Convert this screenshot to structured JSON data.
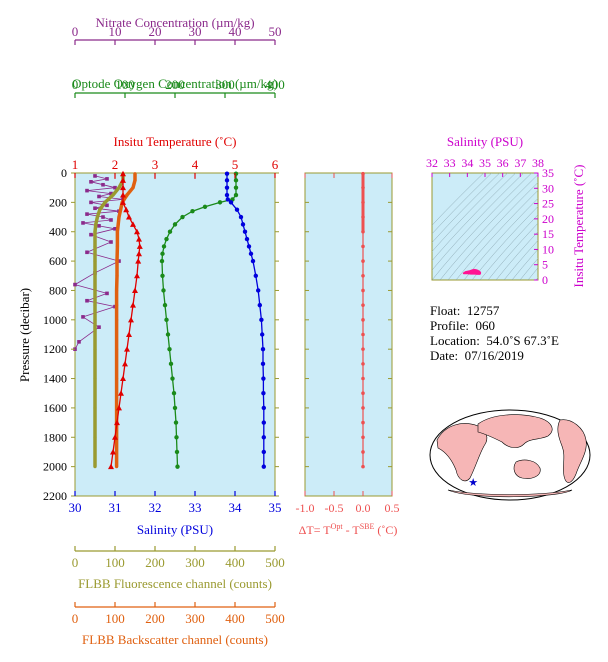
{
  "colors": {
    "nitrate": "#8b2a8b",
    "oxygen": "#1a8a1a",
    "temperature": "#e00000",
    "salinity": "#0000dd",
    "fluorescence": "#9a9a30",
    "backscatter": "#e06010",
    "delta_t": "#ee5050",
    "ts_axis": "#cc00cc",
    "plot_bg": "#ccecf8",
    "frame": "#9a9a30"
  },
  "info": {
    "float_label": "Float:",
    "float_value": "12757",
    "profile_label": "Profile:",
    "profile_value": "060",
    "location_label": "Location:",
    "location_value": "54.0˚S  67.3˚E",
    "date_label": "Date:",
    "date_value": "07/16/2019"
  },
  "chart_data": [
    {
      "type": "line",
      "id": "main-profile",
      "ylabel": "Pressure (decibar)",
      "ylim": [
        0,
        2200
      ],
      "y_ticks": [
        "0",
        "200",
        "400",
        "600",
        "800",
        "1000",
        "1200",
        "1400",
        "1600",
        "1800",
        "2000",
        "2200"
      ],
      "inverted_y": true,
      "axes": {
        "nitrate": {
          "label": "Nitrate Concentration (µm/kg)",
          "range": [
            0,
            50
          ],
          "ticks": [
            "0",
            "10",
            "20",
            "30",
            "40",
            "50"
          ]
        },
        "oxygen": {
          "label": "Optode Oxygen Concentration (µm/kg)",
          "range": [
            0,
            400
          ],
          "ticks": [
            "0",
            "100",
            "200",
            "300",
            "400"
          ]
        },
        "temperature": {
          "label": "Insitu Temperature (˚C)",
          "range": [
            1,
            6
          ],
          "ticks": [
            "1",
            "2",
            "3",
            "4",
            "5",
            "6"
          ]
        },
        "salinity": {
          "label": "Salinity (PSU)",
          "range": [
            30,
            35
          ],
          "ticks": [
            "30",
            "31",
            "32",
            "33",
            "34",
            "35"
          ]
        },
        "fluorescence": {
          "label": "FLBB Fluorescence channel (counts)",
          "range": [
            0,
            500
          ],
          "ticks": [
            "0",
            "100",
            "200",
            "300",
            "400",
            "500"
          ]
        },
        "backscatter": {
          "label": "FLBB Backscatter channel (counts)",
          "range": [
            0,
            500
          ],
          "ticks": [
            "0",
            "100",
            "200",
            "300",
            "400",
            "500"
          ]
        }
      },
      "series": [
        {
          "key": "temperature",
          "axis": "temperature",
          "pressure": [
            5,
            50,
            100,
            150,
            200,
            250,
            300,
            350,
            400,
            450,
            500,
            550,
            600,
            700,
            800,
            900,
            1000,
            1100,
            1200,
            1300,
            1400,
            1500,
            1600,
            1700,
            1800,
            1900,
            2000
          ],
          "values": [
            2.2,
            2.2,
            2.2,
            2.2,
            2.2,
            2.28,
            2.35,
            2.45,
            2.55,
            2.6,
            2.62,
            2.6,
            2.58,
            2.55,
            2.5,
            2.45,
            2.4,
            2.35,
            2.3,
            2.25,
            2.2,
            2.15,
            2.1,
            2.05,
            2.0,
            1.95,
            1.9
          ]
        },
        {
          "key": "salinity",
          "axis": "salinity",
          "pressure": [
            5,
            50,
            100,
            150,
            180,
            200,
            250,
            300,
            350,
            400,
            450,
            500,
            550,
            600,
            700,
            800,
            900,
            1000,
            1100,
            1200,
            1300,
            1400,
            1500,
            1600,
            1700,
            1800,
            1900,
            2000
          ],
          "values": [
            33.8,
            33.8,
            33.8,
            33.8,
            33.82,
            33.9,
            34.05,
            34.15,
            34.2,
            34.25,
            34.3,
            34.35,
            34.4,
            34.45,
            34.52,
            34.58,
            34.62,
            34.66,
            34.68,
            34.7,
            34.7,
            34.71,
            34.71,
            34.72,
            34.72,
            34.72,
            34.72,
            34.72
          ]
        },
        {
          "key": "oxygen",
          "axis": "oxygen",
          "pressure": [
            5,
            50,
            100,
            150,
            180,
            200,
            230,
            260,
            300,
            350,
            400,
            450,
            500,
            550,
            600,
            700,
            800,
            900,
            1000,
            1100,
            1200,
            1300,
            1400,
            1500,
            1600,
            1700,
            1800,
            1900,
            2000
          ],
          "values": [
            322,
            322,
            322,
            322,
            315,
            290,
            260,
            235,
            215,
            200,
            190,
            183,
            178,
            175,
            174,
            175,
            177,
            180,
            183,
            186,
            189,
            192,
            195,
            198,
            200,
            202,
            203,
            204,
            205
          ]
        },
        {
          "key": "nitrate",
          "axis": "nitrate",
          "pressure": [
            20,
            40,
            60,
            80,
            100,
            120,
            140,
            160,
            180,
            200,
            220,
            240,
            260,
            280,
            300,
            320,
            340,
            360,
            380,
            420,
            470,
            540,
            600,
            680,
            760,
            820,
            870,
            910,
            980,
            1050,
            1150,
            1200
          ],
          "values": [
            5,
            8,
            4,
            7,
            10,
            3,
            9,
            6,
            12,
            4,
            8,
            5,
            11,
            3,
            7,
            9,
            2,
            6,
            10,
            4,
            9,
            3,
            11,
            5,
            0,
            8,
            3,
            10,
            2,
            6,
            1,
            0
          ]
        },
        {
          "key": "fluorescence",
          "axis": "fluorescence",
          "pressure": [
            5,
            50,
            100,
            150,
            200,
            250,
            300,
            350,
            400,
            500,
            600,
            700,
            800,
            900,
            1000,
            1200,
            1400,
            1600,
            1800,
            2000
          ],
          "values": [
            120,
            120,
            110,
            95,
            75,
            62,
            56,
            52,
            50,
            50,
            50,
            50,
            50,
            50,
            50,
            50,
            50,
            50,
            50,
            50
          ]
        },
        {
          "key": "backscatter",
          "axis": "backscatter",
          "pressure": [
            5,
            50,
            100,
            150,
            200,
            250,
            300,
            350,
            400,
            500,
            600,
            700,
            800,
            900,
            1000,
            1200,
            1400,
            1600,
            1800,
            2000
          ],
          "values": [
            150,
            150,
            145,
            130,
            118,
            114,
            110,
            108,
            106,
            106,
            105,
            105,
            104,
            104,
            104,
            104,
            104,
            104,
            104,
            104
          ]
        }
      ]
    },
    {
      "type": "line",
      "id": "delta-t",
      "xlim": [
        -1.0,
        0.5
      ],
      "x_ticks": [
        "-1.0",
        "-0.5",
        "0.0",
        "0.5"
      ],
      "ylim": [
        0,
        2200
      ],
      "xlabel_prefix": "ΔT= T",
      "xlabel_sup1": "Opt",
      "xlabel_mid": " - T",
      "xlabel_sup2": "SBE",
      "xlabel_suffix": " (˚C)",
      "pressure": [
        5,
        100,
        200,
        300,
        400,
        500,
        600,
        700,
        800,
        900,
        1000,
        1100,
        1200,
        1300,
        1400,
        1500,
        1600,
        1700,
        1800,
        1900,
        2000
      ],
      "values": [
        0,
        0,
        0,
        0,
        0,
        0,
        0,
        0,
        0,
        0,
        0,
        0,
        0,
        0,
        0,
        0,
        0,
        0,
        0,
        0,
        0
      ]
    },
    {
      "type": "scatter",
      "id": "ts-diagram",
      "xlabel": "Salinity (PSU)",
      "ylabel": "Insitu Temperature (˚C)",
      "xlim": [
        32,
        38
      ],
      "ylim": [
        0,
        35
      ],
      "x_ticks": [
        "32",
        "33",
        "34",
        "35",
        "36",
        "37",
        "38"
      ],
      "y_ticks": [
        "0",
        "5",
        "10",
        "15",
        "20",
        "25",
        "30",
        "35"
      ],
      "salinity": [
        33.8,
        33.85,
        33.9,
        34.0,
        34.1,
        34.2,
        34.3,
        34.4,
        34.5,
        34.6,
        34.65,
        34.7,
        34.72,
        34.72,
        34.7,
        34.6,
        34.4,
        34.2,
        34.0,
        33.9
      ],
      "temperature": [
        2.2,
        2.4,
        2.6,
        2.7,
        2.8,
        3.0,
        3.2,
        3.3,
        3.2,
        3.0,
        2.8,
        2.6,
        2.4,
        2.2,
        2.0,
        2.0,
        2.1,
        2.1,
        2.2,
        2.2
      ]
    }
  ],
  "map": {
    "float_longitude": 67.3,
    "float_latitude": -54.0
  }
}
